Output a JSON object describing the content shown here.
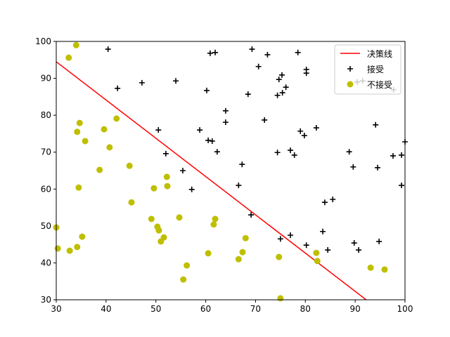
{
  "chart_data": {
    "type": "scatter",
    "xlim": [
      30,
      100
    ],
    "ylim": [
      30,
      100
    ],
    "xticks": [
      30,
      40,
      50,
      60,
      70,
      80,
      90,
      100
    ],
    "yticks": [
      30,
      40,
      50,
      60,
      70,
      80,
      90,
      100
    ],
    "legend": "upper right",
    "series": [
      {
        "name": "决策线",
        "color": "#ff0000",
        "mode": "line",
        "x": [
          30,
          92.2
        ],
        "values": [
          94.5,
          30
        ]
      },
      {
        "name": "接受",
        "color": "#000000",
        "mode": "plus",
        "x": [
          40.4,
          42.3,
          47.2,
          54.0,
          50.5,
          52.0,
          55.4,
          57.2,
          58.8,
          60.2,
          60.9,
          61.9,
          60.5,
          61.3,
          62.3,
          64.0,
          64.0,
          66.6,
          67.3,
          68.5,
          69.3,
          69.1,
          70.6,
          71.8,
          72.4,
          74.4,
          74.4,
          74.7,
          75.3,
          75.4,
          76.1,
          75.0,
          77.0,
          77.0,
          77.8,
          78.5,
          79.0,
          79.8,
          80.2,
          80.2,
          80.2,
          82.2,
          83.5,
          83.9,
          84.5,
          85.5,
          88.8,
          89.6,
          89.8,
          90.7,
          90.4,
          91.5,
          94.1,
          94.5,
          94.8,
          97.7,
          97.6,
          99.3,
          100.0,
          99.3
        ],
        "values": [
          97.9,
          87.3,
          88.8,
          89.3,
          76.0,
          69.6,
          65.0,
          59.9,
          76.0,
          86.7,
          96.8,
          97.0,
          73.2,
          73.0,
          70.1,
          81.2,
          78.1,
          61.0,
          66.7,
          85.7,
          97.9,
          53.0,
          93.2,
          78.7,
          96.4,
          85.4,
          69.9,
          89.7,
          90.9,
          86.1,
          87.6,
          46.5,
          47.5,
          70.5,
          69.2,
          97.0,
          75.7,
          74.5,
          92.4,
          91.4,
          44.8,
          76.6,
          48.5,
          56.4,
          43.5,
          57.2,
          70.1,
          66.0,
          45.4,
          43.5,
          89.0,
          89.3,
          77.4,
          65.8,
          45.8,
          86.9,
          69.0,
          69.2,
          72.8,
          61.0
        ]
      },
      {
        "name": "不接受",
        "color": "#bfbf00",
        "mode": "circle",
        "x": [
          32.5,
          34.0,
          34.7,
          34.2,
          35.8,
          39.6,
          40.7,
          42.1,
          38.7,
          44.7,
          34.5,
          45.1,
          30.0,
          30.3,
          32.7,
          34.2,
          35.2,
          49.6,
          52.2,
          52.3,
          49.1,
          50.3,
          50.6,
          51.6,
          51.0,
          54.7,
          61.9,
          61.6,
          56.2,
          55.5,
          60.5,
          68.0,
          67.4,
          66.6,
          74.7,
          75.0,
          82.2,
          82.4,
          93.1,
          95.9
        ],
        "values": [
          95.6,
          99.0,
          77.9,
          75.5,
          73.0,
          76.2,
          71.3,
          79.1,
          65.2,
          66.3,
          60.4,
          56.4,
          49.6,
          43.9,
          43.3,
          44.3,
          47.1,
          60.2,
          63.3,
          60.8,
          51.9,
          49.8,
          48.8,
          46.9,
          45.8,
          52.3,
          51.9,
          50.4,
          39.3,
          35.5,
          42.6,
          46.7,
          42.9,
          41.0,
          41.6,
          30.4,
          42.7,
          40.5,
          38.7,
          38.2
        ]
      }
    ]
  }
}
